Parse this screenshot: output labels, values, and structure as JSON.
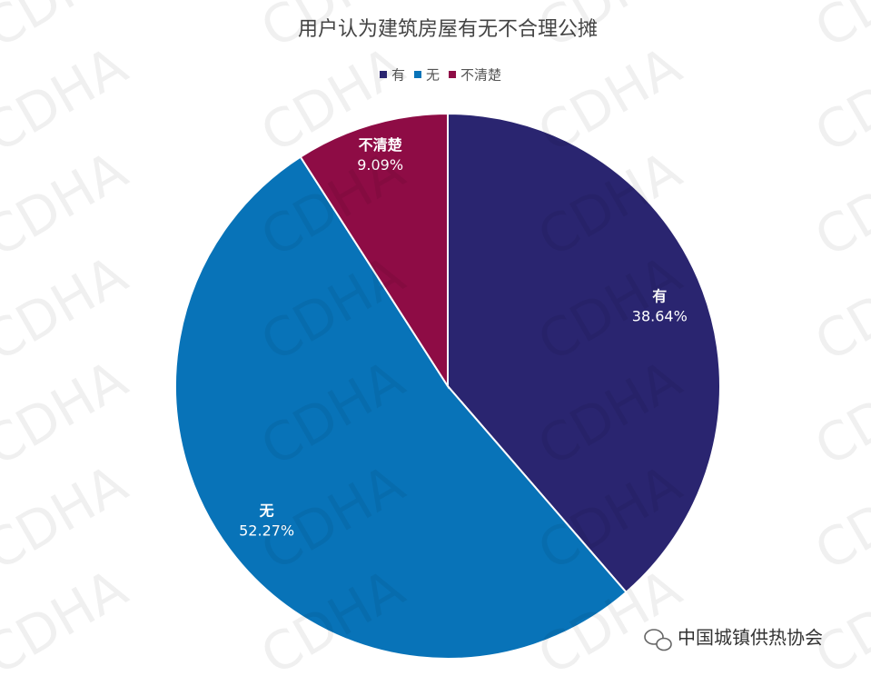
{
  "chart_data": {
    "type": "pie",
    "title": "用户认为建筑房屋有无不合理公摊",
    "categories": [
      "有",
      "无",
      "不清楚"
    ],
    "values": [
      38.64,
      52.27,
      9.09
    ],
    "value_labels": [
      "38.64%",
      "52.27%",
      "9.09%"
    ],
    "colors": [
      "#2a2570",
      "#0873b8",
      "#8e0c45"
    ],
    "legend": "top"
  },
  "watermark": "CDHA",
  "footer": "中国城镇供热协会"
}
